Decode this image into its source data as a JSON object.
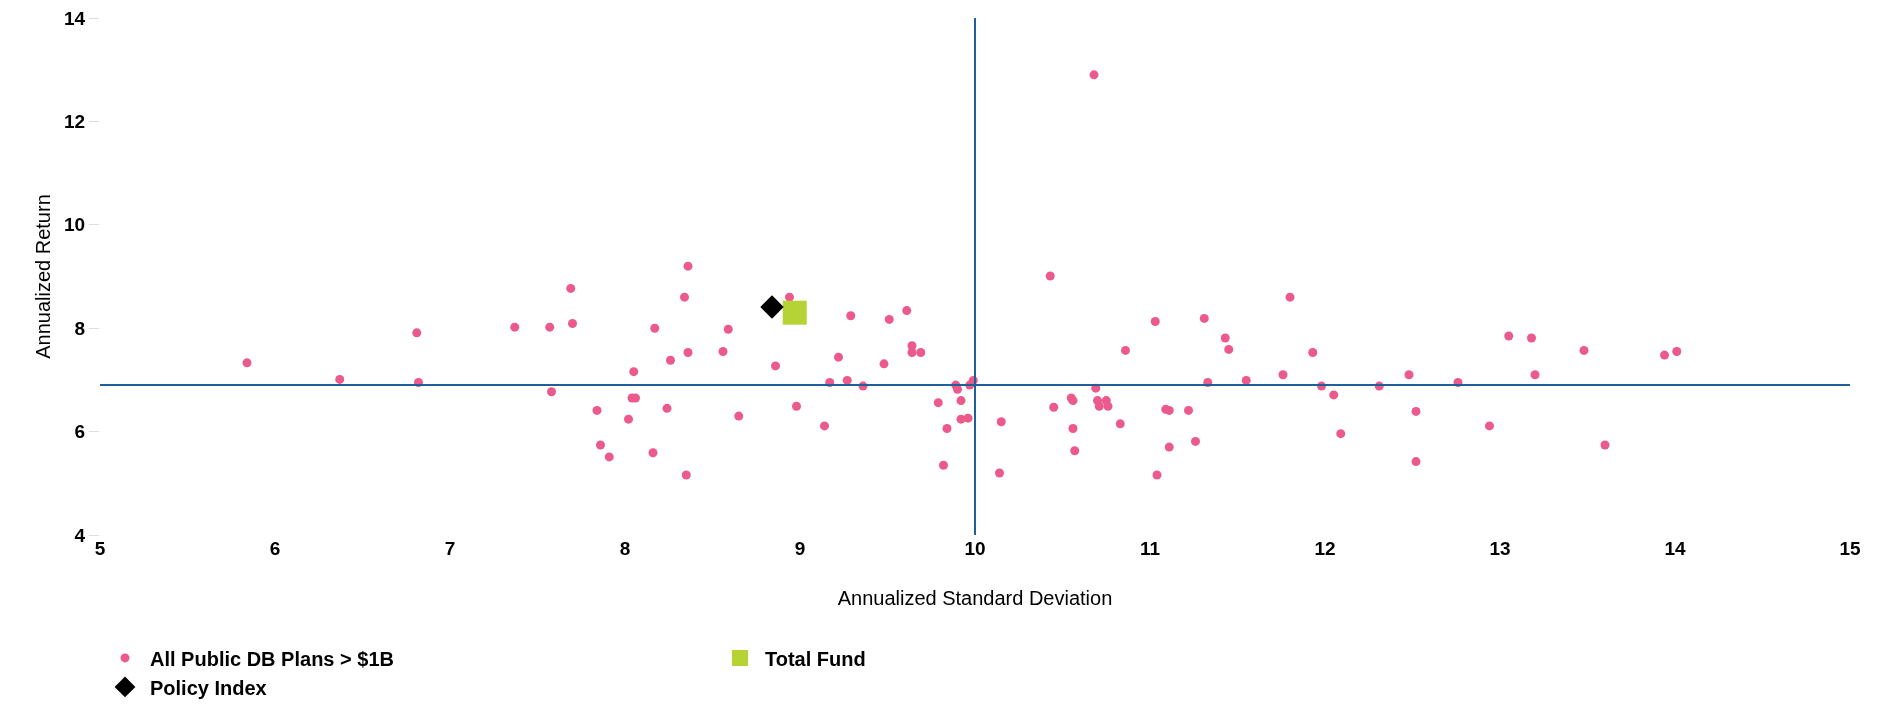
{
  "chart_data": {
    "type": "scatter",
    "xlabel": "Annualized Standard Deviation",
    "ylabel": "Annualized Return",
    "xlim": [
      5,
      15
    ],
    "xticks": [
      5,
      6,
      7,
      8,
      9,
      10,
      11,
      12,
      13,
      14,
      15
    ],
    "ylim": [
      4,
      14
    ],
    "yticks": [
      4,
      6,
      8,
      10,
      12,
      14
    ],
    "grid": false,
    "legend": "bottom",
    "ref_lines": [
      {
        "axis": "x",
        "value": 10,
        "color": "#1f5f9a"
      },
      {
        "axis": "y",
        "value": 6.9,
        "color": "#1f5f9a"
      }
    ],
    "series": [
      {
        "name": "All Public DB Plans > $1B",
        "color": "#ec5a8c",
        "marker": "circle",
        "x": [
          5.84,
          6.37,
          6.81,
          6.82,
          7.37,
          7.57,
          7.58,
          7.69,
          7.7,
          7.84,
          7.86,
          7.91,
          8.02,
          8.04,
          8.06,
          8.05,
          8.16,
          8.17,
          8.24,
          8.26,
          8.34,
          8.36,
          8.36,
          8.35,
          8.56,
          8.59,
          8.65,
          8.86,
          8.94,
          8.98,
          9.14,
          9.17,
          9.22,
          9.27,
          9.29,
          9.36,
          9.48,
          9.51,
          9.61,
          9.64,
          9.64,
          9.69,
          9.79,
          9.82,
          9.84,
          9.89,
          9.9,
          9.92,
          9.92,
          9.96,
          9.97,
          9.99,
          10.14,
          10.15,
          10.43,
          10.45,
          10.55,
          10.56,
          10.56,
          10.57,
          10.68,
          10.69,
          10.7,
          10.71,
          10.75,
          10.76,
          10.83,
          10.86,
          11.03,
          11.04,
          11.09,
          11.11,
          11.11,
          11.22,
          11.26,
          11.31,
          11.33,
          11.43,
          11.45,
          11.55,
          11.76,
          11.8,
          11.93,
          11.98,
          12.05,
          12.09,
          12.31,
          12.48,
          12.52,
          12.52,
          12.76,
          12.94,
          13.05,
          13.18,
          13.2,
          13.48,
          13.6,
          13.94,
          14.01
        ],
        "values": [
          7.33,
          7.01,
          7.91,
          6.95,
          8.02,
          8.02,
          6.77,
          8.77,
          8.09,
          6.41,
          5.74,
          5.51,
          6.24,
          6.65,
          6.65,
          7.16,
          5.59,
          8.0,
          6.45,
          7.38,
          8.6,
          9.2,
          7.53,
          5.16,
          7.55,
          7.98,
          6.3,
          7.27,
          8.6,
          6.49,
          6.11,
          6.95,
          7.44,
          6.99,
          8.24,
          6.88,
          7.31,
          8.17,
          8.34,
          7.66,
          7.53,
          7.53,
          6.56,
          5.35,
          6.06,
          6.9,
          6.82,
          6.6,
          6.24,
          6.26,
          6.9,
          6.99,
          5.2,
          6.19,
          9.01,
          6.47,
          6.65,
          6.6,
          6.06,
          5.63,
          12.9,
          6.84,
          6.6,
          6.49,
          6.6,
          6.49,
          6.15,
          7.57,
          8.13,
          5.16,
          6.43,
          6.41,
          5.7,
          6.41,
          5.81,
          8.19,
          6.95,
          7.81,
          7.59,
          6.99,
          7.1,
          8.6,
          7.53,
          6.88,
          6.71,
          5.96,
          6.88,
          7.1,
          6.39,
          5.42,
          6.95,
          6.11,
          7.85,
          7.81,
          7.1,
          7.57,
          5.74,
          7.48,
          7.55
        ]
      },
      {
        "name": "Total Fund",
        "color": "#b5d334",
        "marker": "square",
        "x": [
          8.97
        ],
        "values": [
          8.3
        ]
      },
      {
        "name": "Policy Index",
        "color": "#000000",
        "marker": "diamond",
        "x": [
          8.84
        ],
        "values": [
          8.41
        ]
      }
    ]
  }
}
